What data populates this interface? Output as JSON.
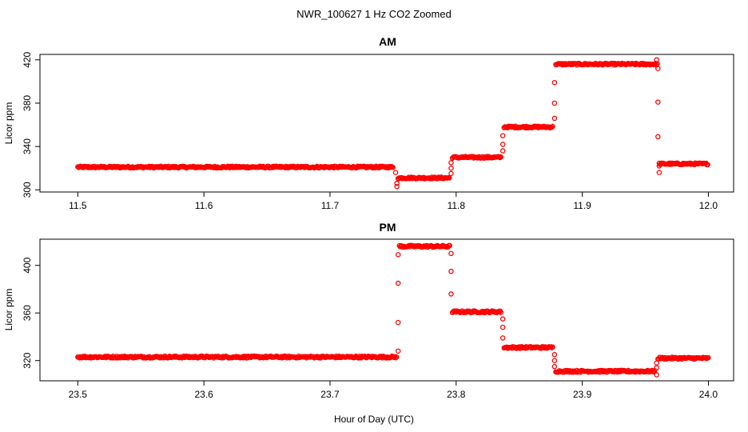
{
  "chart_data": {
    "type": "scatter",
    "title": "NWR_100627  1 Hz CO2 Zoomed",
    "xlabel": "Hour of Day (UTC)",
    "marker_color": "#ff0000",
    "panels": [
      {
        "title": "AM",
        "ylabel": "Licor ppm",
        "xlim": [
          11.47,
          12.02
        ],
        "ylim": [
          298,
          425
        ],
        "xticks": [
          11.5,
          11.6,
          11.7,
          11.8,
          11.9,
          12.0
        ],
        "xtick_labels": [
          "11.5",
          "11.6",
          "11.7",
          "11.8",
          "11.9",
          "12.0"
        ],
        "yticks": [
          300,
          340,
          380,
          420
        ],
        "ytick_labels": [
          "300",
          "340",
          "380",
          "420"
        ],
        "segments": [
          {
            "x_start": 11.5,
            "x_end": 11.75,
            "y": 321
          },
          {
            "x_start": 11.754,
            "x_end": 11.795,
            "y": 311
          },
          {
            "x_start": 11.797,
            "x_end": 11.836,
            "y": 330
          },
          {
            "x_start": 11.838,
            "x_end": 11.877,
            "y": 358
          },
          {
            "x_start": 11.879,
            "x_end": 11.96,
            "y": 416
          },
          {
            "x_start": 11.961,
            "x_end": 12.0,
            "y": 324
          }
        ],
        "transitions": [
          {
            "x": 11.752,
            "y": 316
          },
          {
            "x": 11.753,
            "y": 306
          },
          {
            "x": 11.753,
            "y": 303
          },
          {
            "x": 11.796,
            "y": 315
          },
          {
            "x": 11.796,
            "y": 320
          },
          {
            "x": 11.796,
            "y": 325
          },
          {
            "x": 11.837,
            "y": 336
          },
          {
            "x": 11.837,
            "y": 342
          },
          {
            "x": 11.837,
            "y": 350
          },
          {
            "x": 11.878,
            "y": 366
          },
          {
            "x": 11.878,
            "y": 380
          },
          {
            "x": 11.878,
            "y": 399
          },
          {
            "x": 11.959,
            "y": 420
          },
          {
            "x": 11.96,
            "y": 412
          },
          {
            "x": 11.96,
            "y": 381
          },
          {
            "x": 11.96,
            "y": 349
          },
          {
            "x": 11.961,
            "y": 322
          },
          {
            "x": 11.961,
            "y": 316
          }
        ]
      },
      {
        "title": "PM",
        "ylabel": "Licor ppm",
        "xlim": [
          23.47,
          24.02
        ],
        "ylim": [
          303,
          422
        ],
        "xticks": [
          23.5,
          23.6,
          23.7,
          23.8,
          23.9,
          24.0
        ],
        "xtick_labels": [
          "23.5",
          "23.6",
          "23.7",
          "23.8",
          "23.9",
          "24.0"
        ],
        "yticks": [
          320,
          360,
          400
        ],
        "ytick_labels": [
          "320",
          "360",
          "400"
        ],
        "segments": [
          {
            "x_start": 23.5,
            "x_end": 23.753,
            "y": 323
          },
          {
            "x_start": 23.755,
            "x_end": 23.795,
            "y": 416
          },
          {
            "x_start": 23.797,
            "x_end": 23.836,
            "y": 361
          },
          {
            "x_start": 23.838,
            "x_end": 23.877,
            "y": 331
          },
          {
            "x_start": 23.879,
            "x_end": 23.958,
            "y": 311
          },
          {
            "x_start": 23.96,
            "x_end": 24.0,
            "y": 322
          }
        ],
        "transitions": [
          {
            "x": 23.754,
            "y": 328
          },
          {
            "x": 23.754,
            "y": 352
          },
          {
            "x": 23.754,
            "y": 385
          },
          {
            "x": 23.754,
            "y": 409
          },
          {
            "x": 23.796,
            "y": 410
          },
          {
            "x": 23.796,
            "y": 395
          },
          {
            "x": 23.796,
            "y": 376
          },
          {
            "x": 23.837,
            "y": 355
          },
          {
            "x": 23.837,
            "y": 348
          },
          {
            "x": 23.837,
            "y": 339
          },
          {
            "x": 23.878,
            "y": 325
          },
          {
            "x": 23.878,
            "y": 320
          },
          {
            "x": 23.878,
            "y": 315
          },
          {
            "x": 23.959,
            "y": 314
          },
          {
            "x": 23.959,
            "y": 308
          },
          {
            "x": 23.959,
            "y": 318
          }
        ]
      }
    ]
  }
}
